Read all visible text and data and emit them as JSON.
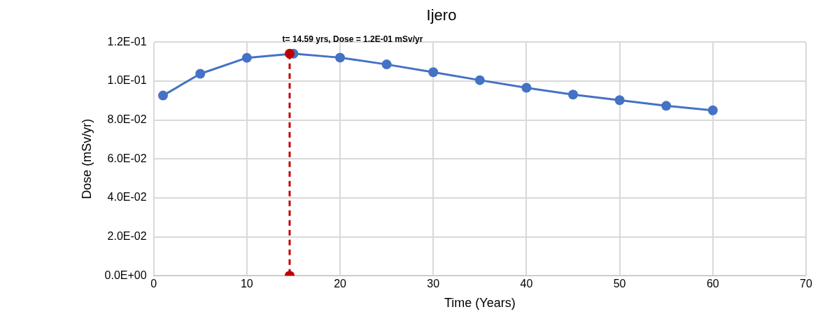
{
  "chart_data": {
    "type": "line",
    "title": "Ijero",
    "xlabel": "Time (Years)",
    "ylabel": "Dose (mSv/yr)",
    "xlim": [
      0,
      70
    ],
    "xticks": [
      0,
      10,
      20,
      30,
      40,
      50,
      60,
      70
    ],
    "ylim": [
      0,
      0.12
    ],
    "yticks": [
      {
        "value": 0,
        "label": "0.0E+00"
      },
      {
        "value": 0.02,
        "label": "2.0E-02"
      },
      {
        "value": 0.04,
        "label": "4.0E-02"
      },
      {
        "value": 0.06,
        "label": "6.0E-02"
      },
      {
        "value": 0.08,
        "label": "8.0E-02"
      },
      {
        "value": 0.1,
        "label": "1.0E-01"
      },
      {
        "value": 0.12,
        "label": "1.2E-01"
      }
    ],
    "grid": true,
    "legend": false,
    "marker": "circle",
    "series": [
      {
        "color": "#4472c4",
        "line_style": "solid",
        "x": [
          1,
          5,
          10,
          15,
          20,
          25,
          30,
          35,
          40,
          45,
          50,
          55,
          60
        ],
        "values": [
          0.0926,
          0.1038,
          0.112,
          0.1141,
          0.1121,
          0.1086,
          0.1046,
          0.1005,
          0.0966,
          0.0931,
          0.0902,
          0.0873,
          0.085
        ]
      },
      {
        "color": "#c00000",
        "line_style": "dashed",
        "x": [
          14.59,
          14.59
        ],
        "values": [
          0.1141,
          0
        ]
      }
    ],
    "annotations": [
      {
        "text": "t= 14.59 yrs, Dose = 1.2E-01 mSv/yr",
        "x": 14.59,
        "y": 0.1141
      }
    ]
  }
}
